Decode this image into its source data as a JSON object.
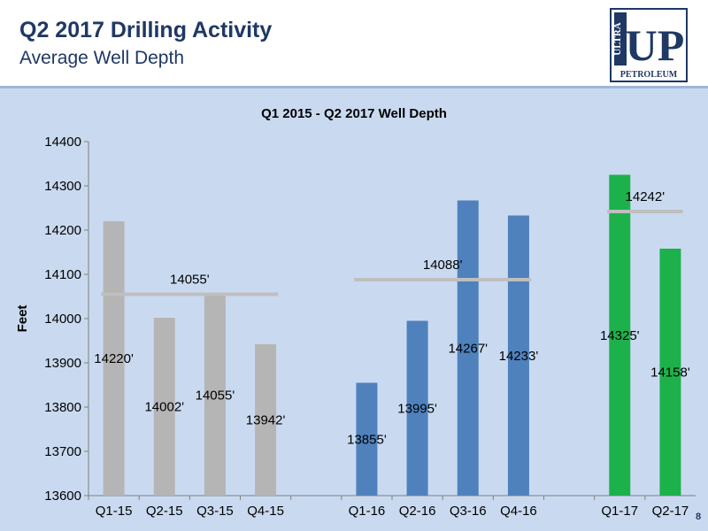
{
  "slide": {
    "title": "Q2 2017 Drilling Activity",
    "subtitle": "Average Well Depth",
    "page_number": "8"
  },
  "logo": {
    "top_text": "ULTRA",
    "big_text": "UP",
    "bottom_text": "PETROLEUM"
  },
  "chart_data": {
    "type": "bar",
    "title": "Q1 2015 - Q2 2017 Well Depth",
    "xlabel": "",
    "ylabel": "Feet",
    "ylim": [
      13600,
      14400
    ],
    "yticks": [
      13600,
      13700,
      13800,
      13900,
      14000,
      14100,
      14200,
      14300,
      14400
    ],
    "grid": false,
    "groups": [
      {
        "color": "#b5b5b5",
        "categories": [
          "Q1-15",
          "Q2-15",
          "Q3-15",
          "Q4-15"
        ],
        "values": [
          14220,
          14002,
          14055,
          13942
        ],
        "labels": [
          "14220'",
          "14002'",
          "14055'",
          "13942'"
        ],
        "average": 14055,
        "average_label": "14055'"
      },
      {
        "color": "#4f81bd",
        "categories": [
          "Q1-16",
          "Q2-16",
          "Q3-16",
          "Q4-16"
        ],
        "values": [
          13855,
          13995,
          14267,
          14233
        ],
        "labels": [
          "13855'",
          "13995'",
          "14267'",
          "14233'"
        ],
        "average": 14088,
        "average_label": "14088'"
      },
      {
        "color": "#1db14b",
        "categories": [
          "Q1-17",
          "Q2-17"
        ],
        "values": [
          14325,
          14158
        ],
        "labels": [
          "14325'",
          "14158'"
        ],
        "average": 14242,
        "average_label": "14242'"
      }
    ],
    "average_line_color": "#bfbfbf"
  }
}
